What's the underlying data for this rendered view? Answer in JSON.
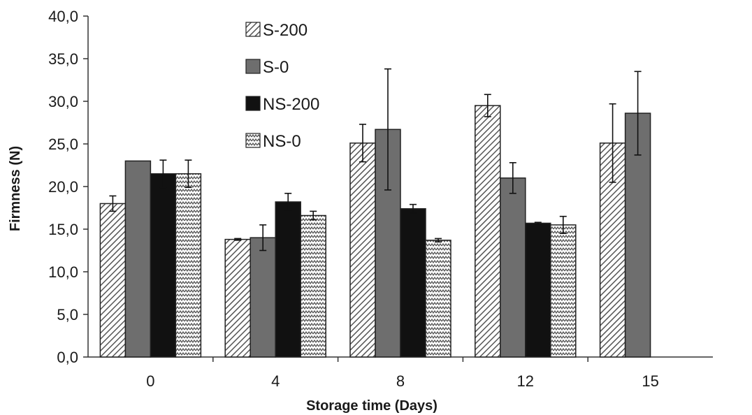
{
  "chart_data": {
    "type": "bar",
    "title": "",
    "xlabel": "Storage time  (Days)",
    "ylabel": "Firmness (N)",
    "ylim": [
      0,
      40
    ],
    "yticks": [
      "0,0",
      "5,0",
      "10,0",
      "15,0",
      "20,0",
      "25,0",
      "30,0",
      "35,0",
      "40,0"
    ],
    "categories": [
      "0",
      "4",
      "8",
      "12",
      "15"
    ],
    "legend_position": "top-center",
    "grid": false,
    "series": [
      {
        "name": "S-200",
        "pattern": "diagonal-hatch",
        "color": "#555555",
        "values": [
          18.0,
          13.8,
          25.1,
          29.5,
          25.1
        ],
        "errors": [
          0.9,
          0.1,
          2.2,
          1.3,
          4.6
        ]
      },
      {
        "name": "S-0",
        "pattern": "solid",
        "color": "#6e6e6e",
        "values": [
          23.0,
          14.0,
          26.7,
          21.0,
          28.6
        ],
        "errors": [
          0.0,
          1.5,
          7.1,
          1.8,
          4.9
        ]
      },
      {
        "name": "NS-200",
        "pattern": "solid",
        "color": "#111111",
        "values": [
          21.5,
          18.2,
          17.4,
          15.7,
          null
        ],
        "errors": [
          1.6,
          1.0,
          0.5,
          0.1,
          null
        ]
      },
      {
        "name": "NS-0",
        "pattern": "zigzag",
        "color": "#555555",
        "values": [
          21.5,
          16.6,
          13.7,
          15.5,
          null
        ],
        "errors": [
          1.6,
          0.5,
          0.2,
          1.0,
          null
        ]
      }
    ]
  }
}
